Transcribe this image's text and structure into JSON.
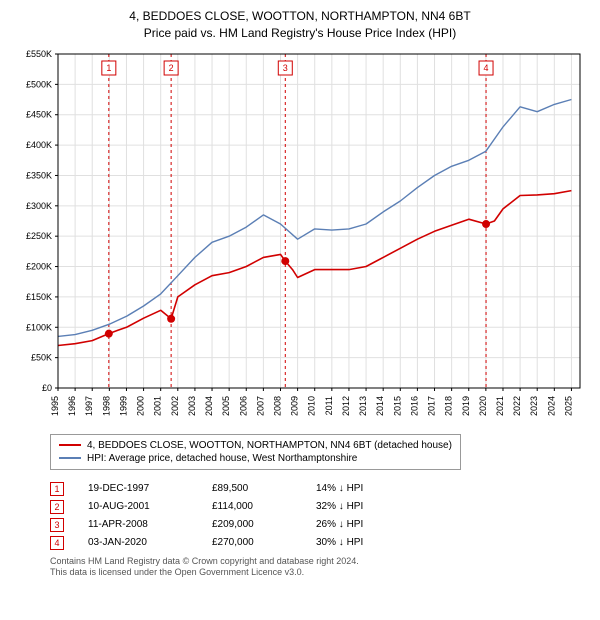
{
  "title_line1": "4, BEDDOES CLOSE, WOOTTON, NORTHAMPTON, NN4 6BT",
  "title_line2": "Price paid vs. HM Land Registry's House Price Index (HPI)",
  "chart": {
    "type": "line",
    "background_color": "#ffffff",
    "grid_color": "#e0e0e0",
    "axis_color": "#000000",
    "x_years": [
      1995,
      1996,
      1997,
      1998,
      1999,
      2000,
      2001,
      2002,
      2003,
      2004,
      2005,
      2006,
      2007,
      2008,
      2009,
      2010,
      2011,
      2012,
      2013,
      2014,
      2015,
      2016,
      2017,
      2018,
      2019,
      2020,
      2021,
      2022,
      2023,
      2024,
      2025
    ],
    "y_ticks": [
      0,
      50000,
      100000,
      150000,
      200000,
      250000,
      300000,
      350000,
      400000,
      450000,
      500000,
      550000
    ],
    "y_tick_labels": [
      "£0",
      "£50K",
      "£100K",
      "£150K",
      "£200K",
      "£250K",
      "£300K",
      "£350K",
      "£400K",
      "£450K",
      "£500K",
      "£550K"
    ],
    "ylim": [
      0,
      550000
    ],
    "xlim": [
      1995,
      2025.5
    ],
    "tick_fontsize": 9,
    "series": [
      {
        "name": "property",
        "label": "4, BEDDOES CLOSE, WOOTTON, NORTHAMPTON, NN4 6BT (detached house)",
        "color": "#d10000",
        "width": 1.6,
        "x": [
          1995,
          1996,
          1997,
          1997.97,
          1998.5,
          1999,
          2000,
          2001,
          2001.61,
          2002,
          2003,
          2004,
          2005,
          2006,
          2007,
          2008,
          2008.28,
          2008.7,
          2009,
          2010,
          2011,
          2012,
          2013,
          2014,
          2015,
          2016,
          2017,
          2018,
          2019,
          2020.01,
          2020.5,
          2021,
          2022,
          2023,
          2024,
          2025
        ],
        "y": [
          70000,
          73000,
          78000,
          89500,
          95000,
          100000,
          115000,
          128000,
          114000,
          150000,
          170000,
          185000,
          190000,
          200000,
          215000,
          220000,
          209000,
          195000,
          182000,
          195000,
          195000,
          195000,
          200000,
          215000,
          230000,
          245000,
          258000,
          268000,
          278000,
          270000,
          275000,
          295000,
          317000,
          318000,
          320000,
          325000
        ]
      },
      {
        "name": "hpi",
        "label": "HPI: Average price, detached house, West Northamptonshire",
        "color": "#5b7fb5",
        "width": 1.4,
        "x": [
          1995,
          1996,
          1997,
          1998,
          1999,
          2000,
          2001,
          2002,
          2003,
          2004,
          2005,
          2006,
          2007,
          2008,
          2009,
          2010,
          2011,
          2012,
          2013,
          2014,
          2015,
          2016,
          2017,
          2018,
          2019,
          2020,
          2021,
          2022,
          2023,
          2024,
          2025
        ],
        "y": [
          85000,
          88000,
          95000,
          105000,
          118000,
          135000,
          155000,
          185000,
          215000,
          240000,
          250000,
          265000,
          285000,
          270000,
          245000,
          262000,
          260000,
          262000,
          270000,
          290000,
          308000,
          330000,
          350000,
          365000,
          375000,
          390000,
          430000,
          463000,
          455000,
          467000,
          475000
        ]
      }
    ],
    "sale_markers": [
      {
        "n": "1",
        "year": 1997.97,
        "price": 89500
      },
      {
        "n": "2",
        "year": 2001.61,
        "price": 114000
      },
      {
        "n": "3",
        "year": 2008.28,
        "price": 209000
      },
      {
        "n": "4",
        "year": 2020.01,
        "price": 270000
      }
    ],
    "marker_line_color": "#d10000",
    "marker_line_dash": "3,3",
    "marker_box_border": "#d10000",
    "marker_box_fill": "#ffffff",
    "marker_box_text": "#d10000",
    "marker_dot_color": "#d10000"
  },
  "legend": [
    {
      "color": "#d10000",
      "label": "4, BEDDOES CLOSE, WOOTTON, NORTHAMPTON, NN4 6BT (detached house)"
    },
    {
      "color": "#5b7fb5",
      "label": "HPI: Average price, detached house, West Northamptonshire"
    }
  ],
  "sales": [
    {
      "n": "1",
      "date": "19-DEC-1997",
      "price": "£89,500",
      "diff": "14% ↓ HPI"
    },
    {
      "n": "2",
      "date": "10-AUG-2001",
      "price": "£114,000",
      "diff": "32% ↓ HPI"
    },
    {
      "n": "3",
      "date": "11-APR-2008",
      "price": "£209,000",
      "diff": "26% ↓ HPI"
    },
    {
      "n": "4",
      "date": "03-JAN-2020",
      "price": "£270,000",
      "diff": "30% ↓ HPI"
    }
  ],
  "footer_line1": "Contains HM Land Registry data © Crown copyright and database right 2024.",
  "footer_line2": "This data is licensed under the Open Government Licence v3.0."
}
